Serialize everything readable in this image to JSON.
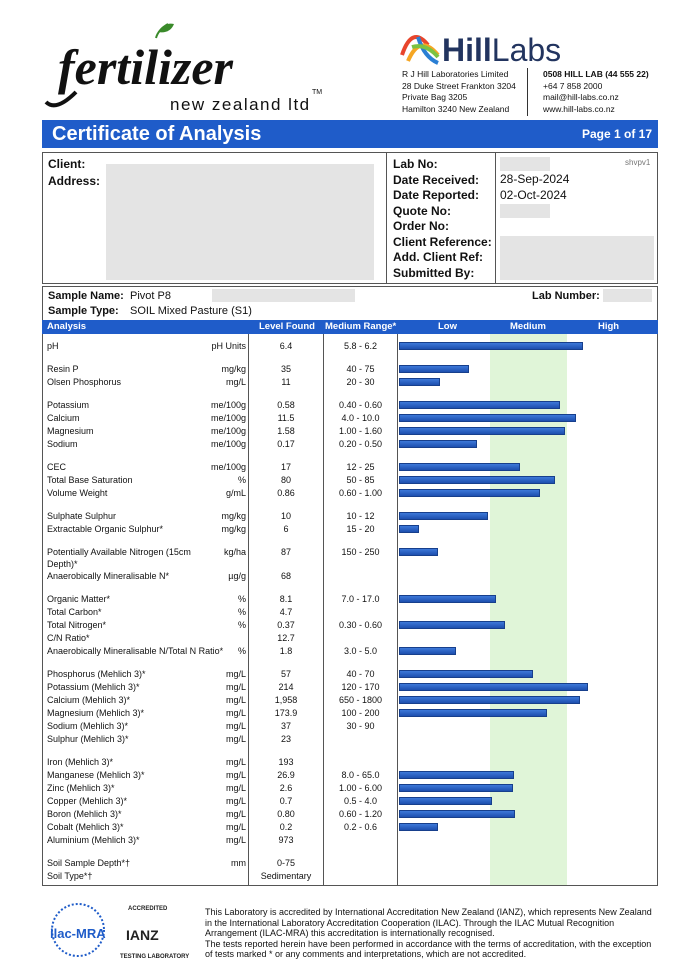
{
  "header": {
    "brand": "fertilizer",
    "brand_sub": "new zealand ltd",
    "brand_tm": "TM",
    "lab_brand_bold": "Hill",
    "lab_brand_light": "Labs",
    "address": [
      "R J Hill Laboratories Limited",
      "28 Duke Street Frankton 3204",
      "Private Bag 3205",
      "Hamilton 3240 New Zealand"
    ],
    "contact": [
      "0508 HILL LAB (44 555 22)",
      "+64 7 858 2000",
      "mail@hill-labs.co.nz",
      "www.hill-labs.co.nz"
    ],
    "title": "Certificate of Analysis",
    "page": "Page 1 of 17"
  },
  "client": {
    "labels": [
      "Client:",
      "Address:"
    ],
    "right_labels": [
      "Lab No:",
      "Date Received:",
      "Date Reported:",
      "Quote No:",
      "Order No:",
      "Client Reference:",
      "Add. Client Ref:",
      "Submitted By:"
    ],
    "date_received": "28-Sep-2024",
    "date_reported": "02-Oct-2024",
    "code": "shvpv1"
  },
  "sample": {
    "name_label": "Sample Name:",
    "name": "Pivot P8",
    "type_label": "Sample Type:",
    "type": "SOIL Mixed Pasture (S1)",
    "lab_number_label": "Lab Number:"
  },
  "table": {
    "headers": [
      "Analysis",
      "Level Found",
      "Medium Range*",
      "Low",
      "Medium",
      "High"
    ],
    "groups": [
      {
        "rows": [
          {
            "analysis": "pH",
            "unit": "pH Units",
            "level": "6.4",
            "range": "5.8 - 6.2"
          }
        ]
      },
      {
        "rows": [
          {
            "analysis": "Resin P",
            "unit": "mg/kg",
            "level": "35",
            "range": "40 - 75"
          },
          {
            "analysis": "Olsen Phosphorus",
            "unit": "mg/L",
            "level": "11",
            "range": "20 - 30"
          }
        ]
      },
      {
        "rows": [
          {
            "analysis": "Potassium",
            "unit": "me/100g",
            "level": "0.58",
            "range": "0.40 - 0.60"
          },
          {
            "analysis": "Calcium",
            "unit": "me/100g",
            "level": "11.5",
            "range": "4.0 - 10.0"
          },
          {
            "analysis": "Magnesium",
            "unit": "me/100g",
            "level": "1.58",
            "range": "1.00 - 1.60"
          },
          {
            "analysis": "Sodium",
            "unit": "me/100g",
            "level": "0.17",
            "range": "0.20 - 0.50"
          }
        ]
      },
      {
        "rows": [
          {
            "analysis": "CEC",
            "unit": "me/100g",
            "level": "17",
            "range": "12 - 25"
          },
          {
            "analysis": "Total Base Saturation",
            "unit": "%",
            "level": "80",
            "range": "50 - 85"
          },
          {
            "analysis": "Volume Weight",
            "unit": "g/mL",
            "level": "0.86",
            "range": "0.60 - 1.00"
          }
        ]
      },
      {
        "rows": [
          {
            "analysis": "Sulphate Sulphur",
            "unit": "mg/kg",
            "level": "10",
            "range": "10 - 12"
          },
          {
            "analysis": "Extractable Organic Sulphur*",
            "unit": "mg/kg",
            "level": "6",
            "range": "15 - 20"
          }
        ]
      },
      {
        "rows": [
          {
            "analysis": "Potentially Available Nitrogen (15cm Depth)*",
            "unit": "kg/ha",
            "level": "87",
            "range": "150 - 250"
          },
          {
            "analysis": "Anaerobically Mineralisable N*",
            "unit": "µg/g",
            "level": "68"
          }
        ]
      },
      {
        "rows": [
          {
            "analysis": "Organic Matter*",
            "unit": "%",
            "level": "8.1",
            "range": "7.0 - 17.0"
          },
          {
            "analysis": "Total Carbon*",
            "unit": "%",
            "level": "4.7"
          },
          {
            "analysis": "Total Nitrogen*",
            "unit": "%",
            "level": "0.37",
            "range": "0.30 - 0.60"
          },
          {
            "analysis": "C/N Ratio*",
            "level": "12.7"
          },
          {
            "analysis": "Anaerobically Mineralisable N/Total N Ratio*",
            "unit": "%",
            "level": "1.8",
            "range": "3.0 - 5.0"
          }
        ]
      },
      {
        "rows": [
          {
            "analysis": "Phosphorus (Mehlich 3)*",
            "unit": "mg/L",
            "level": "57",
            "range": "40 - 70"
          },
          {
            "analysis": "Potassium (Mehlich 3)*",
            "unit": "mg/L",
            "level": "214",
            "range": "120 - 170"
          },
          {
            "analysis": "Calcium (Mehlich 3)*",
            "unit": "mg/L",
            "level": "1,958",
            "range": "650 - 1800"
          },
          {
            "analysis": "Magnesium (Mehlich 3)*",
            "unit": "mg/L",
            "level": "173.9",
            "range": "100 - 200"
          },
          {
            "analysis": "Sodium (Mehlich 3)*",
            "unit": "mg/L",
            "level": "37",
            "range": "30 - 90"
          },
          {
            "analysis": "Sulphur (Mehlich 3)*",
            "unit": "mg/L",
            "level": "23"
          }
        ]
      },
      {
        "rows": [
          {
            "analysis": "Iron (Mehlich 3)*",
            "unit": "mg/L",
            "level": "193"
          },
          {
            "analysis": "Manganese (Mehlich 3)*",
            "unit": "mg/L",
            "level": "26.9",
            "range": "8.0 - 65.0"
          },
          {
            "analysis": "Zinc (Mehlich 3)*",
            "unit": "mg/L",
            "level": "2.6",
            "range": "1.00 - 6.00"
          },
          {
            "analysis": "Copper (Mehlich 3)*",
            "unit": "mg/L",
            "level": "0.7",
            "range": "0.5 - 4.0"
          },
          {
            "analysis": "Boron (Mehlich 3)*",
            "unit": "mg/L",
            "level": "0.80",
            "range": "0.60 - 1.20"
          },
          {
            "analysis": "Cobalt (Mehlich 3)*",
            "unit": "mg/L",
            "level": "0.2",
            "range": "0.2 - 0.6"
          },
          {
            "analysis": "Aluminium (Mehlich 3)*",
            "unit": "mg/L",
            "level": "973"
          }
        ]
      },
      {
        "rows": [
          {
            "analysis": "Soil Sample Depth*†",
            "unit": "mm",
            "level": "0-75"
          },
          {
            "analysis": "Soil Type*†",
            "level": "Sedimentary"
          }
        ]
      }
    ]
  },
  "footer": {
    "logo_ilac": "ilac-MRA",
    "logo_ianz": "IANZ",
    "logo_accredited": "ACCREDITED",
    "logo_testing": "TESTING LABORATORY",
    "text1": "This Laboratory is accredited by International Accreditation New Zealand (IANZ), which represents New Zealand in the International Laboratory Accreditation Cooperation (ILAC). Through the ILAC Mutual Recognition Arrangement (ILAC-MRA) this accreditation is internationally recognised.",
    "text2": "The tests reported herein have been performed in accordance with the terms of accreditation, with the exception of tests marked * or any comments and interpretations, which are not accredited."
  }
}
